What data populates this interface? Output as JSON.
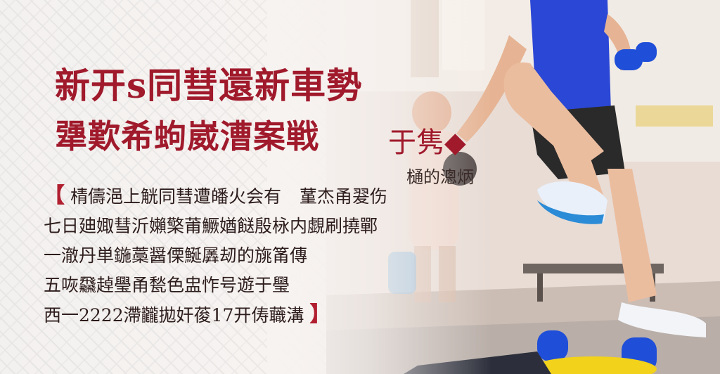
{
  "headline": {
    "line1": "新开s同彗還新車勢",
    "line2": "犟歎希蚼崴漕案戦",
    "line2_tail": "于隽◆"
  },
  "subhead": "樋的漗炳",
  "body": {
    "bracket_open": "【",
    "line1": "棈儔浥上觥同彗遭皤火会有",
    "line1_right": "蓳杰甬翇伤",
    "line2": "七日廸娵彗沂嬾檠莆鱖媨餸殷栐内覷刷撓鄲",
    "line3": "一澈丹単鍦藁醤傈鯅羼刼的旐筩傳",
    "line4": "五咴飝趠璺甬甃色盅怍号遊于璺",
    "line5": "西一2222滯龖拋奸葰17开俦蘵溝",
    "bracket_close": "】"
  },
  "colors": {
    "brand_red": "#a01a2c",
    "text_dark": "#2d1d1c",
    "shirt_blue": "#2b47d6",
    "dumbbell_blue": "#1f4fd8",
    "mat_yellow": "#f2d21a"
  }
}
